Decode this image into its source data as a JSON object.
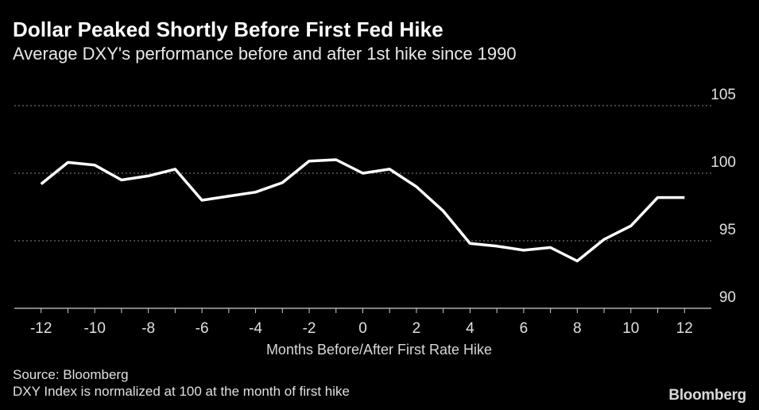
{
  "header": {
    "title": "Dollar Peaked Shortly Before First Fed Hike",
    "subtitle": "Average DXY's performance before and after 1st hike since 1990"
  },
  "footer": {
    "source": "Source: Bloomberg",
    "note": "DXY Index is normalized at 100 at the month of first hike",
    "logo": "Bloomberg"
  },
  "colors": {
    "background": "#000000",
    "line": "#ffffff",
    "grid": "#8a8a8a",
    "text": "#ffffff"
  },
  "chart_data": {
    "type": "line",
    "title": "Dollar Peaked Shortly Before First Fed Hike",
    "subtitle": "Average DXY's performance before and after 1st hike since 1990",
    "xlabel": "Months Before/After First Rate Hike",
    "ylabel": "",
    "xlim": [
      -13,
      13
    ],
    "ylim": [
      90,
      105
    ],
    "x_ticks": [
      -12,
      -10,
      -8,
      -6,
      -4,
      -2,
      0,
      2,
      4,
      6,
      8,
      10,
      12
    ],
    "y_ticks": [
      90,
      95,
      100,
      105
    ],
    "grid": "horizontal dotted",
    "y_axis_side": "right",
    "series": [
      {
        "x": [
          -12,
          -11,
          -10,
          -9,
          -8,
          -7,
          -6,
          -5,
          -4,
          -3,
          -2,
          -1,
          0,
          1,
          2,
          3,
          4,
          5,
          6,
          7,
          8,
          9,
          10,
          11,
          12
        ],
        "values": [
          99.2,
          100.8,
          100.6,
          99.5,
          99.8,
          100.3,
          98.0,
          98.3,
          98.6,
          99.3,
          100.9,
          101.0,
          100.0,
          100.3,
          99.0,
          97.2,
          94.8,
          94.6,
          94.3,
          94.5,
          93.5,
          95.1,
          96.1,
          98.2,
          98.2
        ]
      }
    ]
  }
}
